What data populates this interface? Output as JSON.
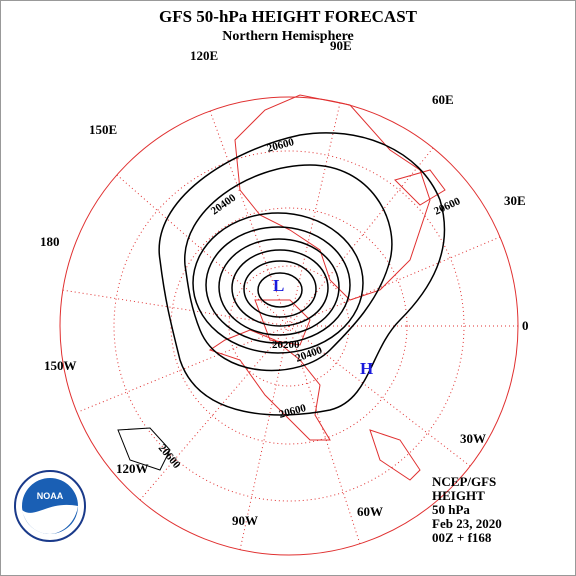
{
  "header": {
    "title": "GFS 50-hPa HEIGHT FORECAST",
    "subtitle": "Northern Hemisphere"
  },
  "longitude_labels": [
    "90E",
    "60E",
    "30E",
    "0",
    "30W",
    "60W",
    "90W",
    "120W",
    "150W",
    "180",
    "150E",
    "120E"
  ],
  "contour_labels": [
    "20600",
    "20400",
    "20600",
    "20200",
    "20400",
    "20600",
    "20600"
  ],
  "pressure_centers": {
    "low": "L",
    "high": "H"
  },
  "info": [
    "NCEP/GFS",
    "HEIGHT",
    "50 hPa",
    "Feb 23, 2020",
    "00Z + f168"
  ],
  "logo": "NOAA"
}
